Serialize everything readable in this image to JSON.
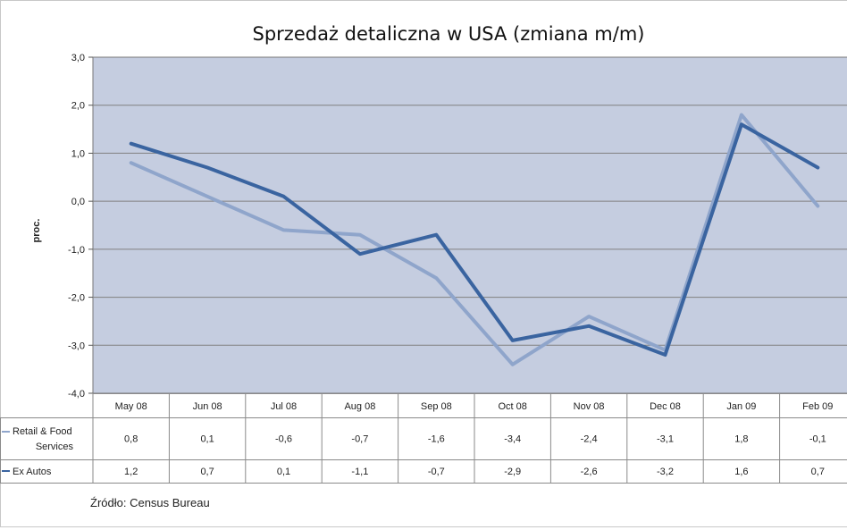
{
  "chart_data": {
    "type": "line",
    "title": "Sprzedaż detaliczna w USA (zmiana m/m)",
    "ylabel": "proc.",
    "xlabel": "",
    "ylim": [
      -4.0,
      3.0
    ],
    "yticks": [
      3.0,
      2.0,
      1.0,
      0.0,
      -1.0,
      -2.0,
      -3.0,
      -4.0
    ],
    "ytick_labels": [
      "3,0",
      "2,0",
      "1,0",
      "0,0",
      "-1,0",
      "-2,0",
      "-3,0",
      "-4,0"
    ],
    "grid": true,
    "categories": [
      "May 08",
      "Jun 08",
      "Jul 08",
      "Aug 08",
      "Sep 08",
      "Oct 08",
      "Nov 08",
      "Dec 08",
      "Jan 09",
      "Feb 09"
    ],
    "series": [
      {
        "name": "Retail & Food Services",
        "name_lines": [
          "Retail & Food",
          "Services"
        ],
        "color": "#8fa5cb",
        "values": [
          0.8,
          0.1,
          -0.6,
          -0.7,
          -1.6,
          -3.4,
          -2.4,
          -3.1,
          1.8,
          -0.1
        ],
        "labels": [
          "0,8",
          "0,1",
          "-0,6",
          "-0,7",
          "-1,6",
          "-3,4",
          "-2,4",
          "-3,1",
          "1,8",
          "-0,1"
        ]
      },
      {
        "name": "Ex Autos",
        "name_lines": [
          "Ex Autos"
        ],
        "color": "#3a64a0",
        "values": [
          1.2,
          0.7,
          0.1,
          -1.1,
          -0.7,
          -2.9,
          -2.6,
          -3.2,
          1.6,
          0.7
        ],
        "labels": [
          "1,2",
          "0,7",
          "0,1",
          "-1,1",
          "-0,7",
          "-2,9",
          "-2,6",
          "-3,2",
          "1,6",
          "0,7"
        ]
      }
    ],
    "source": "Źródło:  Census Bureau"
  },
  "colors": {
    "plot_background": "#c5cde0",
    "gridline": "#808080",
    "table_border": "#8a8a8a"
  }
}
